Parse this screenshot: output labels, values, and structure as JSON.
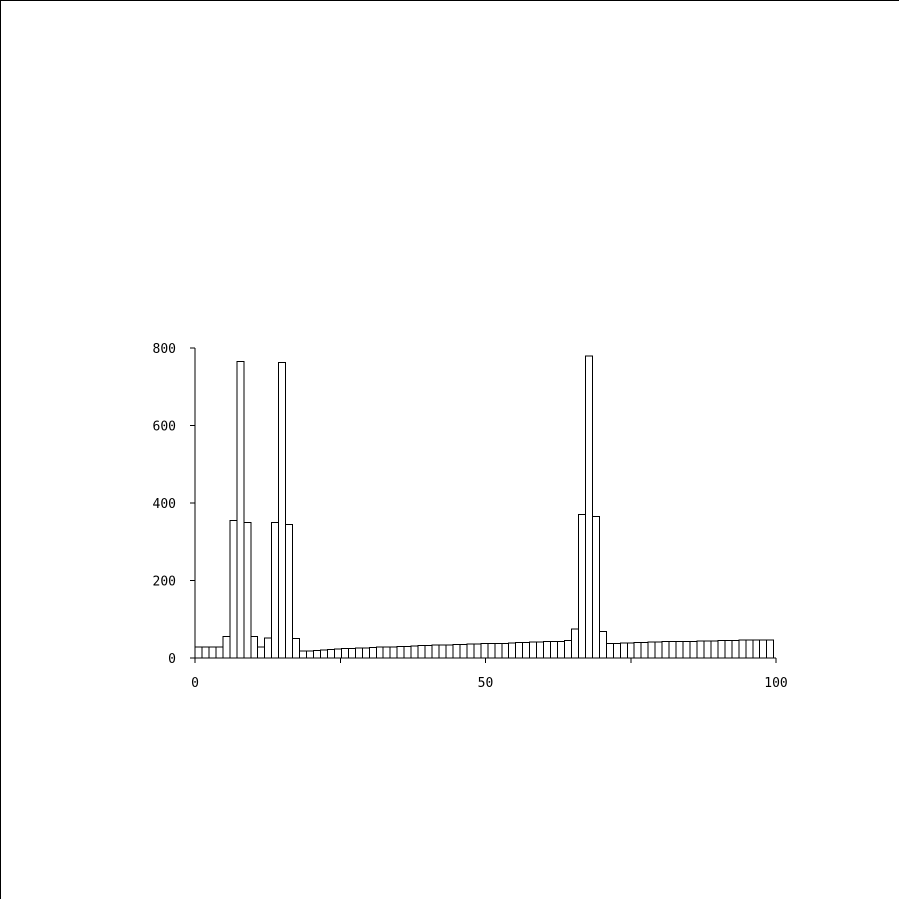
{
  "chart_data": {
    "type": "histogram",
    "title": "",
    "xlabel": "",
    "ylabel": "",
    "xlim": [
      0,
      100
    ],
    "ylim": [
      0,
      800
    ],
    "x_ticks": [
      0,
      25,
      50,
      75,
      100
    ],
    "x_tick_labels": [
      "0",
      "",
      "50",
      "",
      "100"
    ],
    "y_ticks": [
      0,
      200,
      400,
      600,
      800
    ],
    "y_tick_labels": [
      "0",
      "200",
      "400",
      "600",
      "800"
    ],
    "grid": false,
    "bin_width": 1.2,
    "bins_start": [
      0,
      1.2,
      2.4,
      3.6,
      4.8,
      6.0,
      7.2,
      8.4,
      9.6,
      10.8,
      12.0,
      13.2,
      14.4,
      15.6,
      16.8,
      18.0,
      19.2,
      20.4,
      21.6,
      22.8,
      24.0,
      25.2,
      26.4,
      27.6,
      28.8,
      30.0,
      31.2,
      32.4,
      33.6,
      34.8,
      36.0,
      37.2,
      38.4,
      39.6,
      40.8,
      42.0,
      43.2,
      44.4,
      45.6,
      46.8,
      48.0,
      49.2,
      50.4,
      51.6,
      52.8,
      54.0,
      55.2,
      56.4,
      57.6,
      58.8,
      60.0,
      61.2,
      62.4,
      63.6,
      64.8,
      66.0,
      67.2,
      68.4,
      69.6,
      70.8,
      72.0,
      73.2,
      74.4,
      75.6,
      76.8,
      78.0,
      79.2,
      80.4,
      81.6,
      82.8,
      84.0,
      85.2,
      86.4,
      87.6,
      88.8,
      90.0,
      91.2,
      92.4,
      93.6,
      94.8,
      96.0,
      97.2,
      98.4
    ],
    "values": [
      28,
      28,
      28,
      28,
      55,
      355,
      765,
      350,
      55,
      28,
      52,
      350,
      762,
      345,
      50,
      18,
      18,
      20,
      21,
      22,
      23,
      24,
      25,
      26,
      26,
      27,
      28,
      28,
      29,
      30,
      30,
      31,
      32,
      32,
      33,
      34,
      34,
      35,
      35,
      36,
      36,
      37,
      37,
      38,
      38,
      39,
      40,
      40,
      41,
      41,
      42,
      42,
      43,
      45,
      75,
      370,
      780,
      365,
      68,
      38,
      38,
      39,
      39,
      40,
      40,
      41,
      41,
      42,
      42,
      42,
      43,
      43,
      44,
      44,
      44,
      45,
      45,
      45,
      46,
      46,
      46,
      47,
      47
    ]
  }
}
